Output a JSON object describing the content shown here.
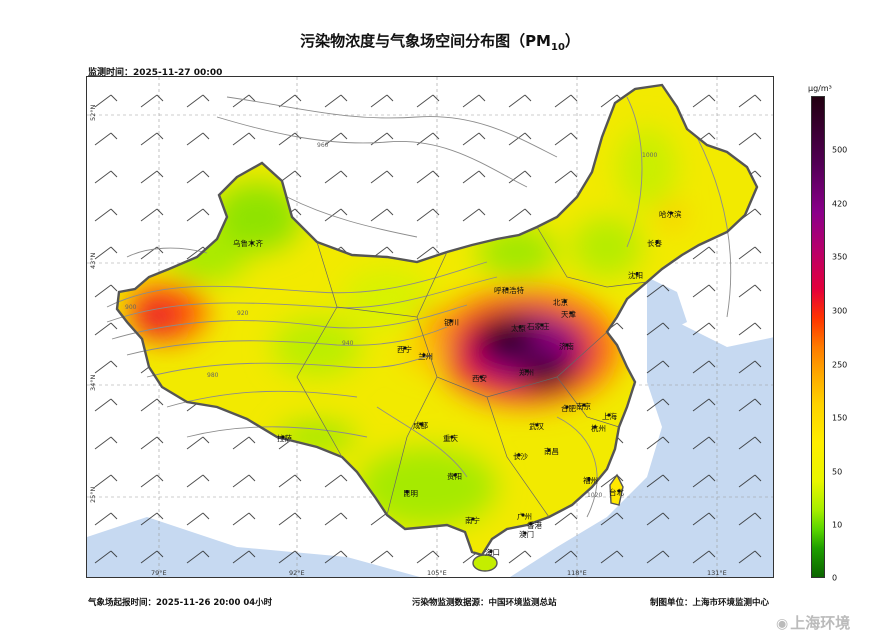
{
  "title": {
    "main": "污染物浓度与气象场空间分布图（PM",
    "sub": "10",
    "end": "）"
  },
  "monitor_time": "监测时间：2025-11-27 00:00",
  "footer": {
    "forecast_time": "气象场起报时间：2025-11-26 20:00 04小时",
    "data_source": "污染物监测数据源：中国环境监测总站",
    "producer": "制图单位：上海市环境监测中心"
  },
  "map": {
    "lat_labels": [
      "52°N",
      "43°N",
      "34°N",
      "25°N"
    ],
    "lon_labels": [
      "79°E",
      "92°E",
      "105°E",
      "118°E",
      "131°E"
    ],
    "cities": [
      "乌鲁木齐",
      "哈尔滨",
      "长春",
      "沈阳",
      "呼和浩特",
      "北京",
      "天津",
      "石家庄",
      "太原",
      "银川",
      "西宁",
      "兰州",
      "济南",
      "西安",
      "郑州",
      "合肥",
      "南京",
      "上海",
      "杭州",
      "成都",
      "重庆",
      "武汉",
      "拉萨",
      "长沙",
      "南昌",
      "贵阳",
      "福州",
      "昆明",
      "台北",
      "南宁",
      "广州",
      "香港",
      "澳门",
      "海口"
    ],
    "contour_labels": [
      "900",
      "920",
      "940",
      "960",
      "980",
      "1000",
      "1020"
    ]
  },
  "colorbar": {
    "unit": "μg/m³",
    "ticks": [
      "500",
      "420",
      "350",
      "300",
      "250",
      "150",
      "50",
      "10",
      "0"
    ]
  },
  "watermark": {
    "icon": "weibo-icon",
    "text": "上海环境"
  }
}
